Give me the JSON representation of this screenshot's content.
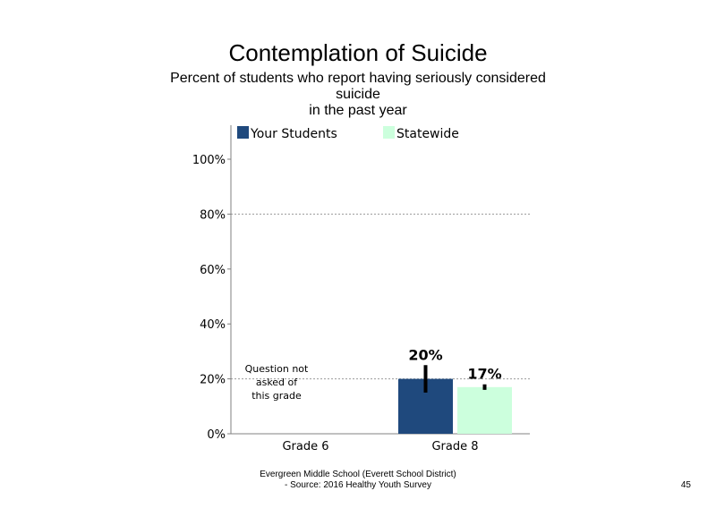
{
  "chart_data": {
    "type": "bar",
    "title": "Contemplation of Suicide",
    "subtitle_lines": [
      "Percent of students who report having seriously considered",
      "suicide",
      "in the past year"
    ],
    "categories": [
      "Grade 6",
      "Grade 8"
    ],
    "series": [
      {
        "name": "Your Students",
        "values": [
          null,
          20
        ],
        "labels": [
          "",
          "20%"
        ],
        "color": "#1f497d",
        "error": [
          null,
          [
            15,
            25
          ]
        ]
      },
      {
        "name": "Statewide",
        "values": [
          null,
          17
        ],
        "labels": [
          "",
          "17%"
        ],
        "color": "#ccffdd",
        "error": [
          null,
          [
            16,
            18
          ]
        ]
      }
    ],
    "ylim": [
      0,
      100
    ],
    "yticks": [
      0,
      20,
      40,
      60,
      80,
      100
    ],
    "ytick_labels": [
      "0%",
      "20%",
      "40%",
      "60%",
      "80%",
      "100%"
    ],
    "gridlines_at": [
      20,
      80
    ],
    "legend_position": "top",
    "annotation": "Question not asked of this grade"
  },
  "note_lines": [
    "Question not",
    "asked of",
    "this grade"
  ],
  "footer": {
    "line1": "Evergreen Middle School (Everett School District)",
    "line2": "- Source: 2016 Healthy  Youth Survey"
  },
  "page_number": "45"
}
